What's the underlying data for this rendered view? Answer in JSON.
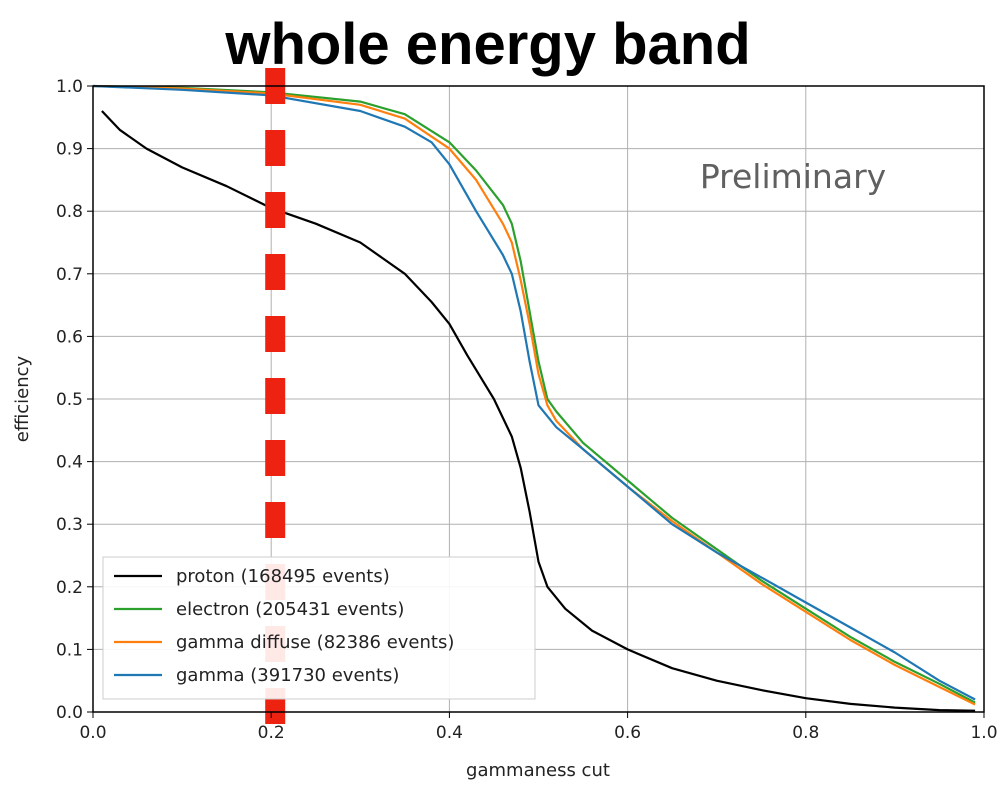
{
  "chart_data": {
    "type": "line",
    "title": "whole energy band",
    "annotation": "Preliminary",
    "xlabel": "gammaness cut",
    "ylabel": "efficiency",
    "xlim": [
      0.0,
      1.0
    ],
    "ylim": [
      0.0,
      1.0
    ],
    "grid": true,
    "x_ticks": [
      "0.0",
      "0.2",
      "0.4",
      "0.6",
      "0.8",
      "1.0"
    ],
    "y_ticks": [
      "0.0",
      "0.1",
      "0.2",
      "0.3",
      "0.4",
      "0.5",
      "0.6",
      "0.7",
      "0.8",
      "0.9",
      "1.0"
    ],
    "legend_position": "bottom-left",
    "marker_line": {
      "x": 0.2,
      "color": "#ee2211",
      "style": "dashed"
    },
    "series": [
      {
        "name": "proton (168495 events)",
        "color": "#000000",
        "x": [
          0.01,
          0.03,
          0.06,
          0.1,
          0.15,
          0.2,
          0.25,
          0.3,
          0.35,
          0.38,
          0.4,
          0.42,
          0.45,
          0.47,
          0.48,
          0.49,
          0.5,
          0.51,
          0.53,
          0.56,
          0.6,
          0.65,
          0.7,
          0.75,
          0.8,
          0.85,
          0.9,
          0.95,
          0.99
        ],
        "values": [
          0.96,
          0.93,
          0.9,
          0.87,
          0.84,
          0.805,
          0.78,
          0.75,
          0.7,
          0.655,
          0.62,
          0.57,
          0.5,
          0.44,
          0.39,
          0.32,
          0.24,
          0.2,
          0.165,
          0.13,
          0.1,
          0.07,
          0.05,
          0.035,
          0.022,
          0.013,
          0.007,
          0.003,
          0.002
        ]
      },
      {
        "name": "electron (205431 events)",
        "color": "#2ca02c",
        "x": [
          0.0,
          0.1,
          0.2,
          0.3,
          0.35,
          0.4,
          0.43,
          0.46,
          0.47,
          0.48,
          0.49,
          0.5,
          0.51,
          0.52,
          0.55,
          0.6,
          0.65,
          0.7,
          0.75,
          0.8,
          0.85,
          0.9,
          0.95,
          0.99
        ],
        "values": [
          1.0,
          0.997,
          0.99,
          0.975,
          0.955,
          0.91,
          0.865,
          0.81,
          0.78,
          0.72,
          0.64,
          0.56,
          0.5,
          0.48,
          0.43,
          0.37,
          0.31,
          0.26,
          0.21,
          0.165,
          0.12,
          0.08,
          0.045,
          0.015
        ]
      },
      {
        "name": "gamma diffuse (82386 events)",
        "color": "#ff7f0e",
        "x": [
          0.0,
          0.1,
          0.2,
          0.3,
          0.35,
          0.4,
          0.43,
          0.46,
          0.47,
          0.48,
          0.49,
          0.5,
          0.51,
          0.52,
          0.55,
          0.6,
          0.65,
          0.7,
          0.75,
          0.8,
          0.85,
          0.9,
          0.95,
          0.99
        ],
        "values": [
          1.0,
          0.996,
          0.988,
          0.97,
          0.948,
          0.9,
          0.85,
          0.78,
          0.75,
          0.69,
          0.62,
          0.54,
          0.49,
          0.465,
          0.42,
          0.36,
          0.305,
          0.255,
          0.205,
          0.16,
          0.115,
          0.075,
          0.04,
          0.012
        ]
      },
      {
        "name": "gamma (391730 events)",
        "color": "#1f77b4",
        "x": [
          0.0,
          0.1,
          0.2,
          0.3,
          0.35,
          0.38,
          0.4,
          0.43,
          0.46,
          0.47,
          0.48,
          0.49,
          0.5,
          0.52,
          0.55,
          0.6,
          0.65,
          0.7,
          0.75,
          0.8,
          0.85,
          0.9,
          0.95,
          0.99
        ],
        "values": [
          1.0,
          0.994,
          0.985,
          0.96,
          0.935,
          0.91,
          0.875,
          0.8,
          0.73,
          0.7,
          0.64,
          0.56,
          0.49,
          0.455,
          0.42,
          0.36,
          0.3,
          0.255,
          0.215,
          0.175,
          0.135,
          0.095,
          0.05,
          0.02
        ]
      }
    ]
  }
}
